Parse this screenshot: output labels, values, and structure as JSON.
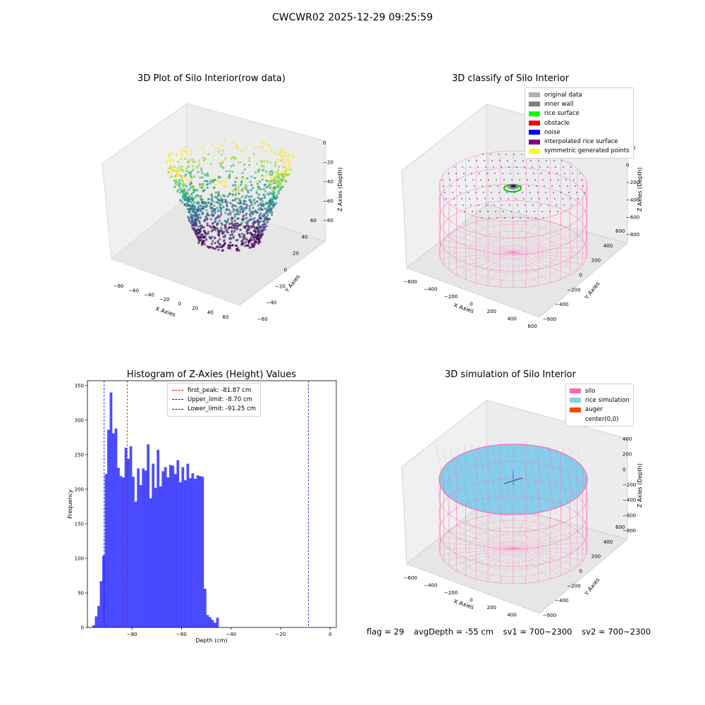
{
  "figure": {
    "suptitle": "CWCWR02 2025-12-29 09:25:59"
  },
  "panels": {
    "raw": {
      "title": "3D Plot of Silo Interior(row data)",
      "xlabel": "X Axies",
      "ylabel": "Y Axies",
      "zlabel": "Z Axies (Depth)",
      "xticks": [
        "-80",
        "-60",
        "-40",
        "-20",
        "0",
        "20",
        "40",
        "60"
      ],
      "yticks": [
        "-60",
        "-40",
        "-20",
        "0",
        "20",
        "40",
        "60"
      ],
      "zticks": [
        "0",
        "-20",
        "-40",
        "-60",
        "-80"
      ],
      "colormap": "viridis"
    },
    "classify": {
      "title": "3D classify of Silo Interior",
      "xlabel": "X Axies",
      "ylabel": "Y Axies",
      "zlabel": "Z Axies (Depth)",
      "xticks": [
        "-600",
        "-400",
        "-200",
        "0",
        "200",
        "400",
        "600"
      ],
      "yticks": [
        "-600",
        "-400",
        "-200",
        "0",
        "200",
        "400",
        "600"
      ],
      "zticks": [
        "200",
        "0",
        "-200",
        "-400",
        "-600",
        "-800"
      ],
      "legend": [
        {
          "label": "original data",
          "color": "#b0b0b0"
        },
        {
          "label": "inner wall",
          "color": "#808080"
        },
        {
          "label": "rice surface",
          "color": "#00ff00"
        },
        {
          "label": "obstacle",
          "color": "#ff0000"
        },
        {
          "label": "noise",
          "color": "#0000ff"
        },
        {
          "label": "interpolated rice surface",
          "color": "#800080"
        },
        {
          "label": "symmetric generated points",
          "color": "#ffff00"
        }
      ]
    },
    "simulation": {
      "title": "3D simulation of Silo Interior",
      "xlabel": "X Axies",
      "ylabel": "Y Axies",
      "zlabel": "Z Axies (Depth)",
      "xticks": [
        "-600",
        "-400",
        "-200",
        "0",
        "200",
        "400",
        "600"
      ],
      "yticks": [
        "-600",
        "-400",
        "-200",
        "0",
        "200",
        "400",
        "600"
      ],
      "zticks": [
        "400",
        "200",
        "0",
        "-200",
        "-400",
        "-600",
        "-800"
      ],
      "legend": [
        {
          "label": "silo",
          "color": "#ff69b4"
        },
        {
          "label": "rice simulation",
          "color": "#87ceeb"
        },
        {
          "label": "auger",
          "color": "#ff4500"
        },
        {
          "label": "center(0,0)",
          "color": ""
        }
      ]
    }
  },
  "chart_data": {
    "type": "bar",
    "title": "Histogram of Z-Axies (Height) Values",
    "xlabel": "Depth (cm)",
    "ylabel": "Frequency",
    "xlim": [
      -98,
      2.5
    ],
    "ylim": [
      0,
      357
    ],
    "xticks": [
      -80,
      -60,
      -40,
      -20,
      0
    ],
    "yticks": [
      0,
      50,
      100,
      150,
      200,
      250,
      300,
      350
    ],
    "bar_color": "#0000ff",
    "bin_start": -96.0,
    "bin_width": 1.0,
    "values": [
      3,
      16,
      31,
      67,
      104,
      222,
      286,
      340,
      281,
      288,
      231,
      219,
      217,
      260,
      244,
      262,
      218,
      182,
      230,
      206,
      230,
      227,
      265,
      187,
      237,
      202,
      257,
      204,
      226,
      232,
      217,
      235,
      234,
      222,
      242,
      210,
      232,
      213,
      237,
      216,
      223,
      215,
      220,
      219,
      218,
      56,
      18,
      15,
      11,
      7,
      14
    ],
    "vlines": [
      {
        "x": -81.87,
        "color": "#ff0000",
        "label": "first_peak: -81.87 cm"
      },
      {
        "x": -8.7,
        "color": "#0000ff",
        "label": "Upper_limit: -8.70 cm"
      },
      {
        "x": -91.25,
        "color": "#0000ff",
        "label": "Lower_limit: -91.25 cm"
      }
    ],
    "legend_position": "upper center"
  },
  "footer": {
    "flag": "flag = 29",
    "avg": "avgDepth = -55 cm",
    "sv1": "sv1 = 700~2300",
    "sv2": "sv2 = 700~2300"
  }
}
